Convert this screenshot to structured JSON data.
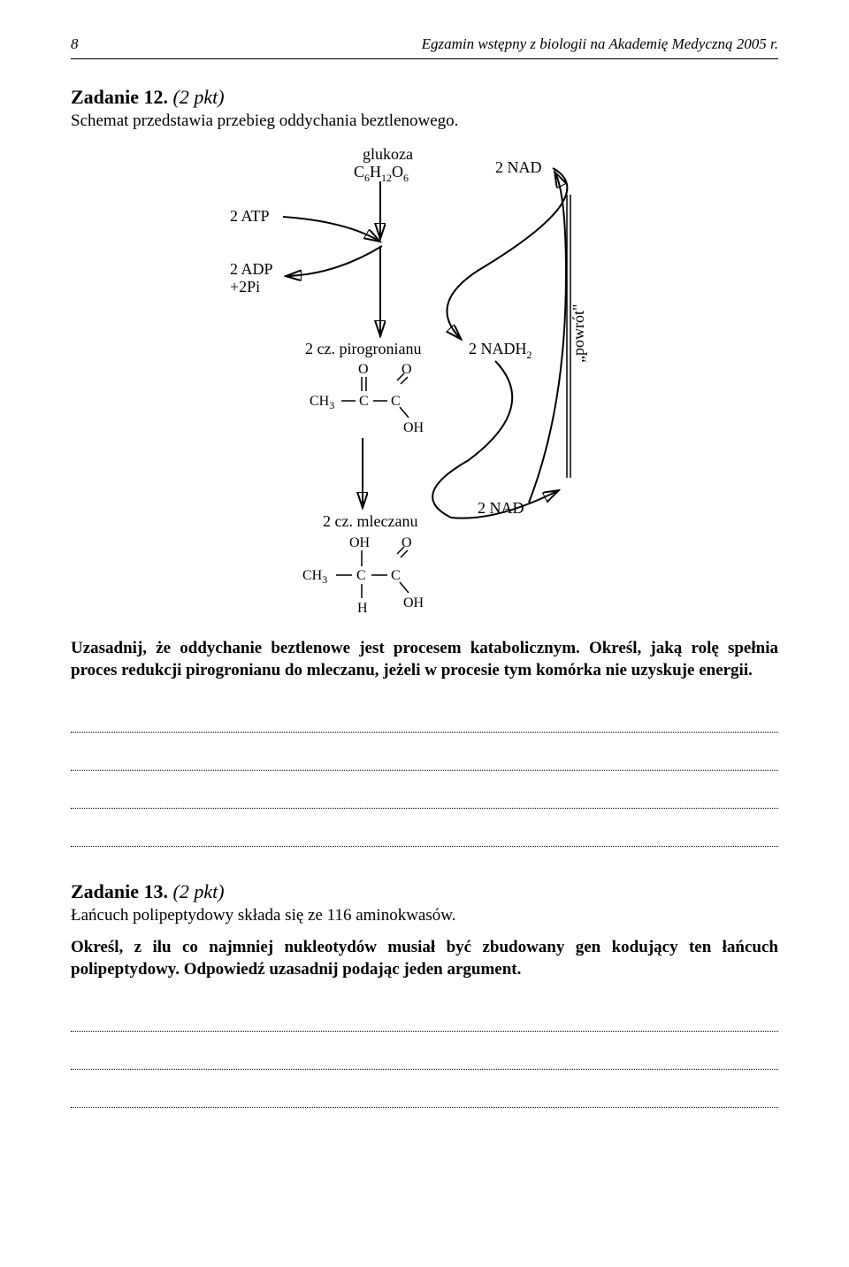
{
  "header": {
    "page_number": "8",
    "title": "Egzamin wstępny z biologii na Akademię Medyczną 2005 r."
  },
  "task12": {
    "heading_main": "Zadanie 12.",
    "heading_pts": "(2 pkt)",
    "intro": "Schemat przedstawia przebieg oddychania beztlenowego.",
    "question": "Uzasadnij, że oddychanie beztlenowe jest procesem katabolicznym. Określ, jaką rolę spełnia proces redukcji pirogronianu do mleczanu, jeżeli w procesie tym komórka nie uzyskuje energii.",
    "answer_line_count": 4
  },
  "diagram": {
    "labels": {
      "glucose_name": "glukoza",
      "glucose_formula": "C",
      "glucose_formula_sub1": "6",
      "glucose_formula_mid": "H",
      "glucose_formula_sub2": "12",
      "glucose_formula_end": "O",
      "glucose_formula_sub3": "6",
      "two_atp": "2 ATP",
      "two_adp": "2 ADP",
      "two_pi": "+2Pi",
      "two_nad_top": "2 NAD",
      "two_nadh2": "2 NADH",
      "two_nadh2_sub": "2",
      "pyruvate": "2 cz. pirogronianu",
      "lactate": "2 cz. mleczanu",
      "two_nad_bottom": "2 NAD",
      "powrot": "„powrót\"",
      "ch3": "CH",
      "ch3_sub": "3",
      "c": "C",
      "o": "O",
      "oh": "OH",
      "h": "H"
    }
  },
  "task13": {
    "heading_main": "Zadanie 13.",
    "heading_pts": "(2 pkt)",
    "intro": "Łańcuch polipeptydowy składa się ze 116 aminokwasów.",
    "question": "Określ, z ilu co najmniej nukleotydów musiał być zbudowany gen kodujący ten łańcuch polipeptydowy. Odpowiedź uzasadnij podając jeden argument.",
    "answer_line_count": 3
  }
}
